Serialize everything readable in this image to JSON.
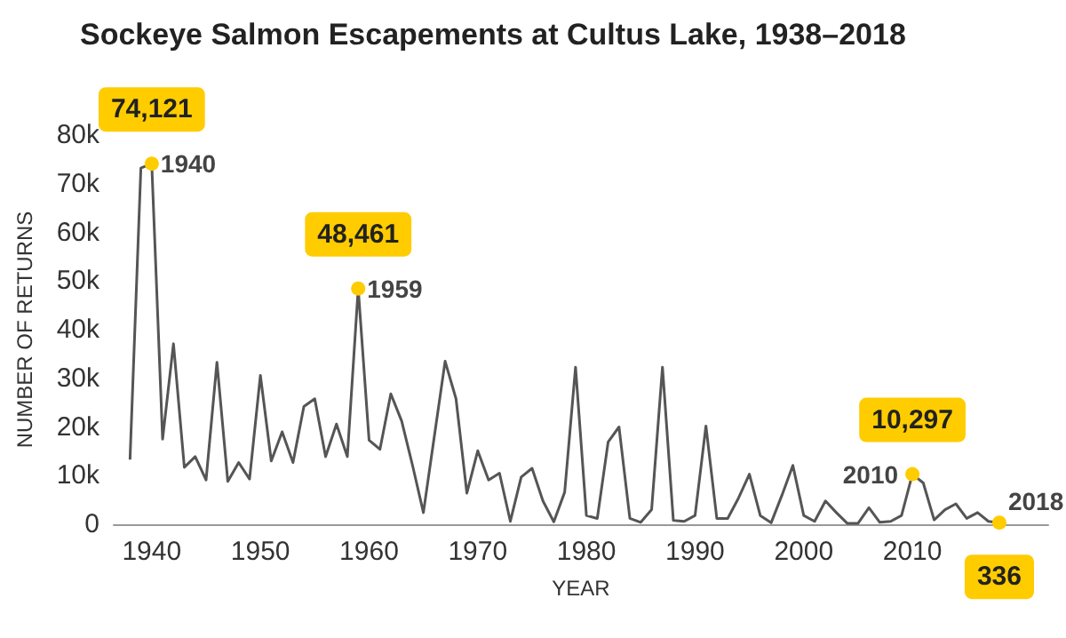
{
  "chart_data": {
    "type": "line",
    "title": "Sockeye Salmon Escapements at Cultus Lake, 1938–2018",
    "xlabel": "YEAR",
    "ylabel": "NUMBER OF RETURNS",
    "x": [
      1938,
      1939,
      1940,
      1941,
      1942,
      1943,
      1944,
      1945,
      1946,
      1947,
      1948,
      1949,
      1950,
      1951,
      1952,
      1953,
      1954,
      1955,
      1956,
      1957,
      1958,
      1959,
      1960,
      1961,
      1962,
      1963,
      1964,
      1965,
      1966,
      1967,
      1968,
      1969,
      1970,
      1971,
      1972,
      1973,
      1974,
      1975,
      1976,
      1977,
      1978,
      1979,
      1980,
      1981,
      1982,
      1983,
      1984,
      1985,
      1986,
      1987,
      1988,
      1989,
      1990,
      1991,
      1992,
      1993,
      1994,
      1995,
      1996,
      1997,
      1998,
      1999,
      2000,
      2001,
      2002,
      2003,
      2004,
      2005,
      2006,
      2007,
      2008,
      2009,
      2010,
      2011,
      2012,
      2013,
      2014,
      2015,
      2016,
      2017,
      2018
    ],
    "series": [
      {
        "color": "#555555",
        "values": [
          13300,
          73200,
          74121,
          17500,
          37100,
          11700,
          13900,
          9100,
          33300,
          8800,
          12700,
          9300,
          30600,
          13000,
          19000,
          12700,
          24200,
          25800,
          13900,
          20600,
          13900,
          48461,
          17300,
          15400,
          26800,
          21200,
          12100,
          2400,
          18000,
          33500,
          25800,
          6400,
          15100,
          9100,
          10500,
          600,
          9700,
          11500,
          4800,
          500,
          6600,
          32300,
          1800,
          1200,
          16900,
          20000,
          1200,
          400,
          3000,
          32300,
          800,
          600,
          1800,
          20200,
          1200,
          1200,
          5400,
          10300,
          1800,
          300,
          6000,
          12100,
          1800,
          600,
          4800,
          2400,
          200,
          200,
          3400,
          400,
          600,
          1800,
          10297,
          8500,
          900,
          3000,
          4200,
          1200,
          2400,
          600,
          336
        ],
        "value_labels": [
          null,
          null,
          "74,121",
          null,
          null,
          null,
          null,
          null,
          null,
          null,
          null,
          null,
          null,
          null,
          null,
          null,
          null,
          null,
          null,
          null,
          null,
          "48,461",
          null,
          null,
          null,
          null,
          null,
          null,
          null,
          null,
          null,
          null,
          null,
          null,
          null,
          null,
          null,
          null,
          null,
          null,
          null,
          null,
          null,
          null,
          null,
          null,
          null,
          null,
          null,
          null,
          null,
          null,
          null,
          null,
          null,
          null,
          null,
          null,
          null,
          null,
          null,
          null,
          null,
          null,
          null,
          null,
          null,
          null,
          null,
          null,
          null,
          null,
          "10,297",
          null,
          null,
          null,
          null,
          null,
          null,
          null,
          "336"
        ]
      }
    ],
    "annotations": [
      {
        "text": "1940",
        "x": 1940,
        "y": 74121
      },
      {
        "text": "1959",
        "x": 1959,
        "y": 48461
      },
      {
        "text": "2010",
        "x": 2010,
        "y": 10297
      },
      {
        "text": "2018",
        "x": 2018,
        "y": 336
      }
    ],
    "xlim": [
      1936.5,
      2022.5
    ],
    "xticks": [
      1940,
      1950,
      1960,
      1970,
      1980,
      1990,
      2000,
      2010
    ],
    "ylim": [
      0,
      80000
    ],
    "yticks": [
      0,
      {
        "value": 10000,
        "label": "10k"
      },
      {
        "value": 20000,
        "label": "20k"
      },
      {
        "value": 30000,
        "label": "30k"
      },
      {
        "value": 40000,
        "label": "40k"
      },
      {
        "value": 50000,
        "label": "50k"
      },
      {
        "value": 60000,
        "label": "60k"
      },
      {
        "value": 70000,
        "label": "70k"
      },
      {
        "value": 80000,
        "label": "80k"
      }
    ],
    "grid": false
  }
}
